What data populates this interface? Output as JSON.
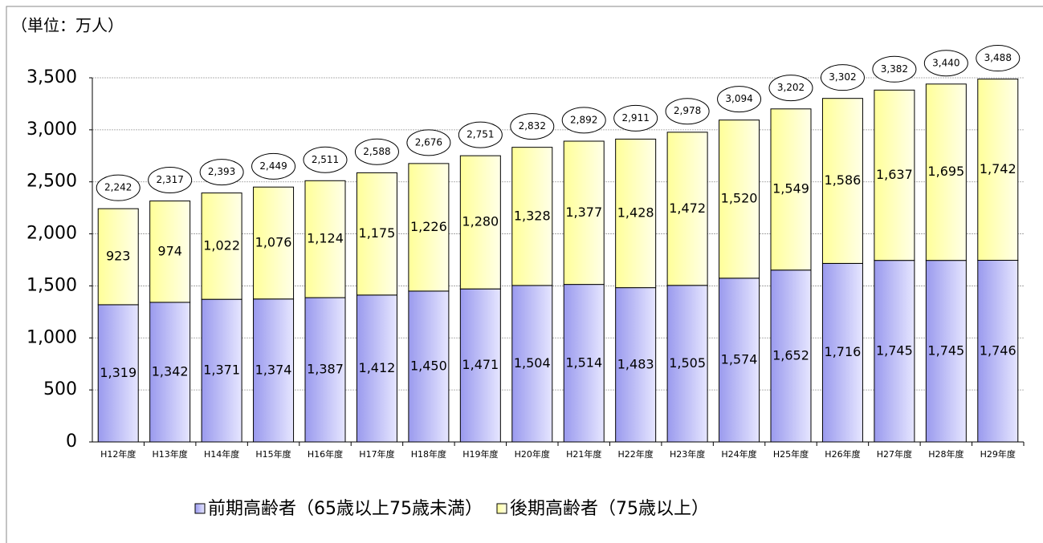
{
  "chart_data": {
    "type": "stacked_bar",
    "unit_label": "（単位：万人）",
    "categories": [
      "H12年度",
      "H13年度",
      "H14年度",
      "H15年度",
      "H16年度",
      "H17年度",
      "H18年度",
      "H19年度",
      "H20年度",
      "H21年度",
      "H22年度",
      "H23年度",
      "H24年度",
      "H25年度",
      "H26年度",
      "H27年度",
      "H28年度",
      "H29年度"
    ],
    "series": [
      {
        "name": "前期高齢者（65歳以上75歳未満）",
        "color": "#9a9aee",
        "values": [
          1319,
          1342,
          1371,
          1374,
          1387,
          1412,
          1450,
          1471,
          1504,
          1514,
          1483,
          1505,
          1574,
          1652,
          1716,
          1745,
          1745,
          1746
        ],
        "value_labels": [
          "1,319",
          "1,342",
          "1,371",
          "1,374",
          "1,387",
          "1,412",
          "1,450",
          "1,471",
          "1,504",
          "1,514",
          "1,483",
          "1,505",
          "1,574",
          "1,652",
          "1,716",
          "1,745",
          "1,745",
          "1,746"
        ]
      },
      {
        "name": "後期高齢者（75歳以上）",
        "color": "#ffff99",
        "values": [
          923,
          974,
          1022,
          1076,
          1124,
          1175,
          1226,
          1280,
          1328,
          1377,
          1428,
          1472,
          1520,
          1549,
          1586,
          1637,
          1695,
          1742
        ],
        "value_labels": [
          "923",
          "974",
          "1,022",
          "1,076",
          "1,124",
          "1,175",
          "1,226",
          "1,280",
          "1,328",
          "1,377",
          "1,428",
          "1,472",
          "1,520",
          "1,549",
          "1,586",
          "1,637",
          "1,695",
          "1,742"
        ]
      }
    ],
    "totals": [
      2242,
      2317,
      2393,
      2449,
      2511,
      2588,
      2676,
      2751,
      2832,
      2892,
      2911,
      2978,
      3094,
      3202,
      3302,
      3382,
      3440,
      3488
    ],
    "total_labels": [
      "2,242",
      "2,317",
      "2,393",
      "2,449",
      "2,511",
      "2,588",
      "2,676",
      "2,751",
      "2,832",
      "2,892",
      "2,911",
      "2,978",
      "3,094",
      "3,202",
      "3,302",
      "3,382",
      "3,440",
      "3,488"
    ],
    "ylim": [
      0,
      3500
    ],
    "yticks": [
      0,
      500,
      {
        "value": 1000,
        "label": "1,000"
      },
      {
        "value": 1500,
        "label": "1,500"
      },
      {
        "value": 2000,
        "label": "2,000"
      },
      {
        "value": 2500,
        "label": "2,500"
      },
      {
        "value": 3000,
        "label": "3,000"
      },
      {
        "value": 3500,
        "label": "3,500"
      }
    ],
    "grid": true,
    "legend": "bottom"
  }
}
